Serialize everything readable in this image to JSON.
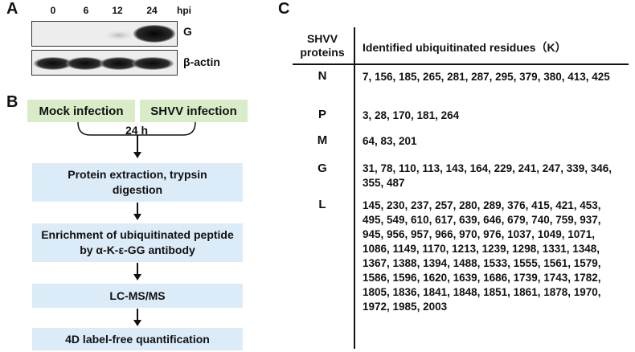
{
  "panel_a": {
    "letter": "A",
    "lanes": [
      "0",
      "6",
      "12",
      "24"
    ],
    "time_unit": "hpi",
    "blots": [
      {
        "label": "G"
      },
      {
        "label": "β-actin"
      }
    ]
  },
  "panel_b": {
    "letter": "B",
    "mock": "Mock infection",
    "shvv": "SHVV infection",
    "time": "24 h",
    "steps": [
      "Protein extraction, trypsin digestion",
      "Enrichment of ubiquitinated peptide by α-K-ε-GG antibody",
      "LC-MS/MS",
      "4D label-free quantification"
    ]
  },
  "panel_c": {
    "letter": "C",
    "col1_header_line1": "SHVV",
    "col1_header_line2": "proteins",
    "col2_header": "Identified ubiquitinated residues（K）",
    "rows": [
      {
        "protein": "N",
        "residues": "7, 156, 185, 265, 281, 287, 295, 379, 380, 413, 425"
      },
      {
        "protein": "P",
        "residues": "3, 28, 170, 181, 264"
      },
      {
        "protein": "M",
        "residues": "64, 83, 201"
      },
      {
        "protein": "G",
        "residues": "31, 78, 110, 113, 143, 164, 229, 241, 247, 339, 346, 355, 487"
      },
      {
        "protein": "L",
        "residues": "145, 230, 237, 257, 280, 289, 376, 415, 421, 453, 495, 549, 610, 617, 639, 646, 679, 740, 759, 937, 945, 956, 957, 966, 970, 976, 1037, 1049, 1071, 1086, 1149, 1170, 1213, 1239, 1298, 1331, 1348, 1367, 1388, 1394, 1488, 1533, 1555, 1561, 1579, 1586, 1596, 1620, 1639, 1686, 1739, 1743, 1782, 1805, 1836, 1841, 1848, 1851, 1861, 1878, 1970, 1972, 1985, 2003"
      }
    ]
  }
}
